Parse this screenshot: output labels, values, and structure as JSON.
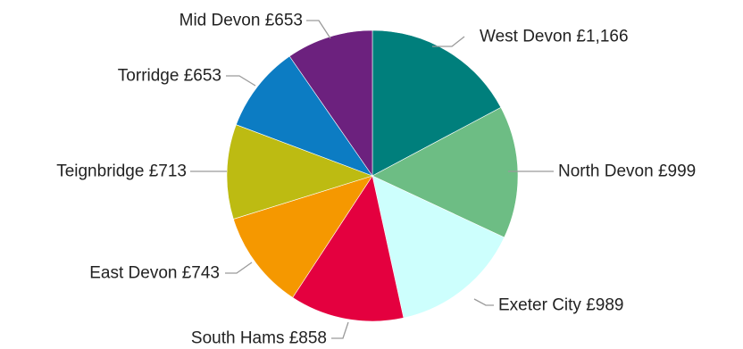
{
  "chart_data": {
    "type": "pie",
    "title": "",
    "slices": [
      {
        "name": "West Devon",
        "value": 1166,
        "value_label": "£1,166",
        "color": "#007f7c"
      },
      {
        "name": "North Devon",
        "value": 999,
        "value_label": "£999",
        "color": "#6dbd84"
      },
      {
        "name": "Exeter City",
        "value": 989,
        "value_label": "£989",
        "color": "#cdfffd"
      },
      {
        "name": "South Hams",
        "value": 858,
        "value_label": "£858",
        "color": "#e4003f"
      },
      {
        "name": "East Devon",
        "value": 743,
        "value_label": "£743",
        "color": "#f59800"
      },
      {
        "name": "Teignbridge",
        "value": 713,
        "value_label": "£713",
        "color": "#bdbb12"
      },
      {
        "name": "Torridge",
        "value": 653,
        "value_label": "£653",
        "color": "#0c7cc3"
      },
      {
        "name": "Mid Devon",
        "value": 653,
        "value_label": "£653",
        "color": "#6c217e"
      }
    ],
    "legend": "none",
    "labels": "outside-with-leader-lines"
  }
}
